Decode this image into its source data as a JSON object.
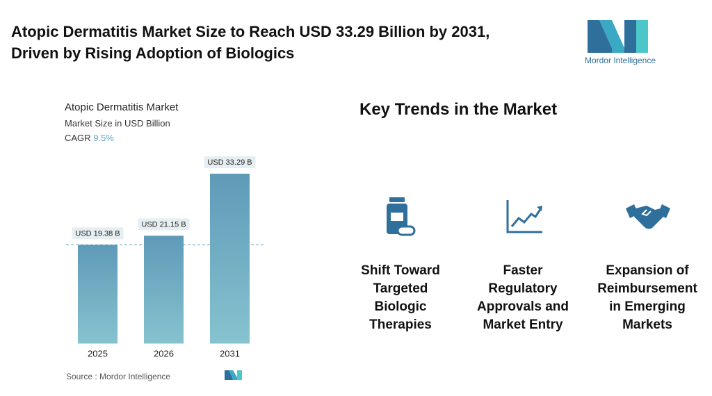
{
  "header": {
    "title_line1": "Atopic Dermatitis Market Size to Reach USD 33.29 Billion by 2031,",
    "title_line2": "Driven by Rising Adoption of Biologics"
  },
  "logo": {
    "text": "Mordor Intelligence"
  },
  "chart_data": {
    "type": "bar",
    "title": "Atopic Dermatitis Market",
    "subtitle": "Market Size in USD Billion",
    "cagr_label": "CAGR",
    "cagr_value": "9.5%",
    "categories": [
      "2025",
      "2026",
      "2031"
    ],
    "values": [
      19.38,
      21.15,
      33.29
    ],
    "value_labels": [
      "USD 19.38 B",
      "USD 21.15 B",
      "USD 33.29 B"
    ],
    "color": "#5f9ab8"
  },
  "source": {
    "label": "Source :",
    "name": "Mordor Intelligence"
  },
  "trends": {
    "heading": "Key Trends in the Market",
    "items": [
      "Shift Toward Targeted Biologic Therapies",
      "Faster Regulatory Approvals and Market Entry",
      "Expansion of Reimbursement in Emerging Markets"
    ]
  }
}
